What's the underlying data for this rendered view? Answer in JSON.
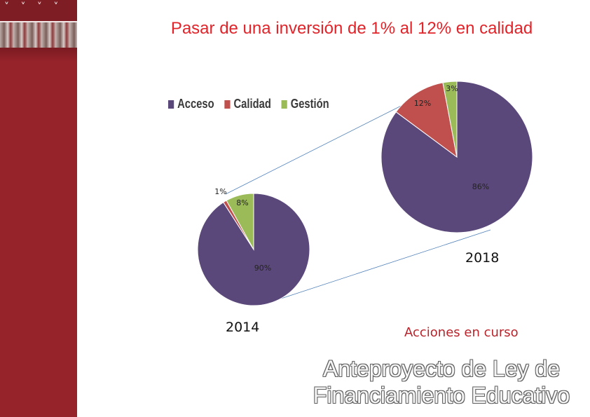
{
  "title": "Pasar de una inversión de 1%  al 12% en calidad",
  "legend": [
    {
      "label": "Acceso",
      "color": "#5b487a"
    },
    {
      "label": "Calidad",
      "color": "#c0504d"
    },
    {
      "label": "Gestión",
      "color": "#9bbb59"
    }
  ],
  "chart_data": [
    {
      "type": "pie",
      "title": "2014",
      "categories": [
        "Acceso",
        "Calidad",
        "Gestión"
      ],
      "values": [
        90,
        1,
        8
      ],
      "data_labels": [
        "90%",
        "1%",
        "8%"
      ]
    },
    {
      "type": "pie",
      "title": "2018",
      "categories": [
        "Acceso",
        "Calidad",
        "Gestión"
      ],
      "values": [
        86,
        12,
        3
      ],
      "data_labels": [
        "86%",
        "12%",
        "3%"
      ]
    }
  ],
  "subtitle": "Acciones en curso",
  "footer": {
    "line1": "Anteproyecto de Ley de",
    "line2": "Financiamiento Educativo"
  }
}
